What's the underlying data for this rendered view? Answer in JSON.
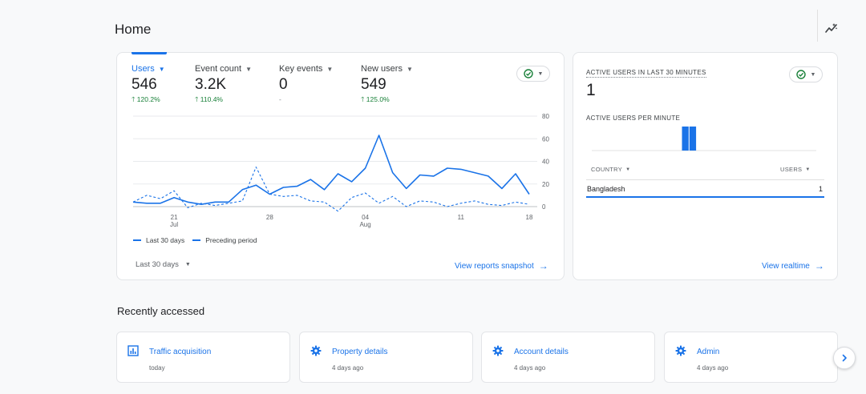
{
  "header": {
    "title": "Home"
  },
  "metrics": [
    {
      "label": "Users",
      "value": "546",
      "change": "120.2%",
      "direction": "up",
      "active": true
    },
    {
      "label": "Event count",
      "value": "3.2K",
      "change": "110.4%",
      "direction": "up",
      "active": false
    },
    {
      "label": "Key events",
      "value": "0",
      "change": "-",
      "direction": "none",
      "active": false
    },
    {
      "label": "New users",
      "value": "549",
      "change": "125.0%",
      "direction": "up",
      "active": false
    }
  ],
  "overview": {
    "legend_current": "Last 30 days",
    "legend_previous": "Preceding period",
    "date_range": "Last 30 days",
    "view_link": "View reports snapshot"
  },
  "chart_data": {
    "type": "line",
    "x_ticks": [
      {
        "label": "21",
        "sub": "Jul"
      },
      {
        "label": "28",
        "sub": ""
      },
      {
        "label": "04",
        "sub": "Aug"
      },
      {
        "label": "11",
        "sub": ""
      },
      {
        "label": "18",
        "sub": ""
      }
    ],
    "y_ticks": [
      "80",
      "60",
      "40",
      "20",
      "0"
    ],
    "ylim": [
      0,
      80
    ],
    "series": [
      {
        "name": "Last 30 days",
        "style": "solid",
        "color": "#1a73e8",
        "values": [
          4,
          3,
          3,
          8,
          4,
          2,
          4,
          4,
          15,
          19,
          11,
          17,
          18,
          24,
          15,
          29,
          22,
          34,
          63,
          30,
          16,
          28,
          27,
          34,
          33,
          30,
          27,
          16,
          29,
          11
        ]
      },
      {
        "name": "Preceding period",
        "style": "dashed",
        "color": "#1a73e8",
        "values": [
          4,
          10,
          7,
          14,
          -1,
          3,
          1,
          3,
          5,
          35,
          11,
          9,
          10,
          5,
          4,
          -4,
          8,
          12,
          3,
          9,
          0,
          5,
          4,
          0,
          3,
          5,
          2,
          1,
          4,
          2
        ]
      }
    ]
  },
  "realtime": {
    "heading": "ACTIVE USERS IN LAST 30 MINUTES",
    "value": "1",
    "per_minute_label": "ACTIVE USERS PER MINUTE",
    "per_minute": [
      0,
      0,
      0,
      0,
      0,
      0,
      0,
      0,
      0,
      0,
      0,
      0,
      1,
      1,
      0,
      0,
      0,
      0,
      0,
      0,
      0,
      0,
      0,
      0,
      0,
      0,
      0,
      0,
      0,
      0
    ],
    "country_col": "COUNTRY",
    "users_col": "USERS",
    "rows": [
      {
        "country": "Bangladesh",
        "users": "1"
      }
    ],
    "view_link": "View realtime"
  },
  "recent": {
    "title": "Recently accessed",
    "items": [
      {
        "title": "Traffic acquisition",
        "subtitle": "today",
        "icon": "chart-report-icon"
      },
      {
        "title": "Property details",
        "subtitle": "4 days ago",
        "icon": "gear-icon"
      },
      {
        "title": "Account details",
        "subtitle": "4 days ago",
        "icon": "gear-icon"
      },
      {
        "title": "Admin",
        "subtitle": "4 days ago",
        "icon": "gear-icon"
      }
    ]
  },
  "colors": {
    "accent": "#1a73e8",
    "positive": "#188038",
    "status_ok": "#188038"
  }
}
